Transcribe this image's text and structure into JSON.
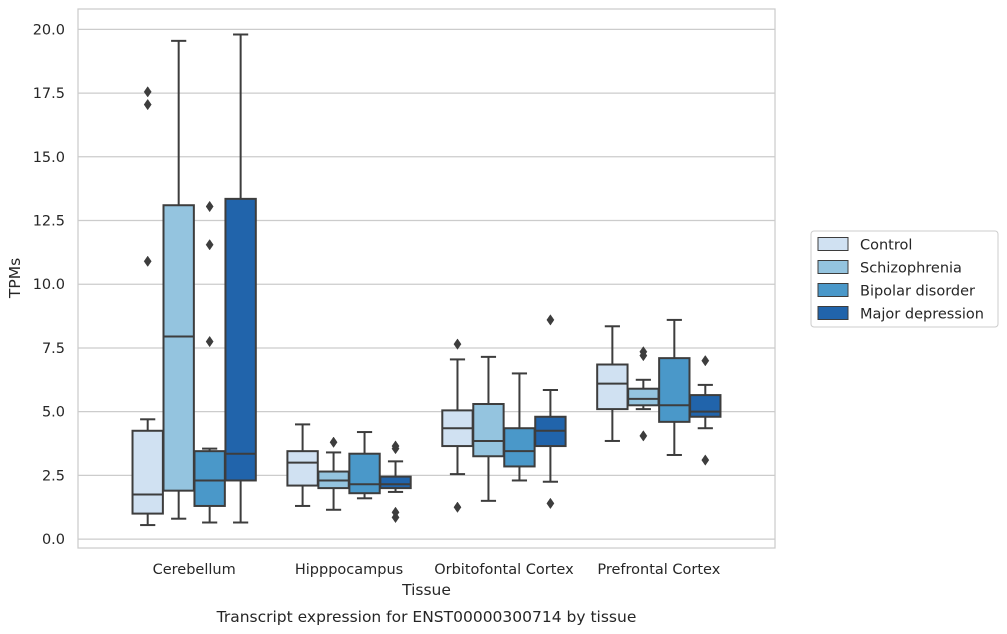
{
  "chart_data": {
    "type": "boxplot",
    "xlabel": "Tissue",
    "ylabel": "TPMs",
    "caption": "Transcript expression for ENST00000300714 by tissue",
    "categories": [
      "Cerebellum",
      "Hipppocampus",
      "Orbitofontal Cortex",
      "Prefrontal Cortex"
    ],
    "ylim": [
      -0.35,
      20.8
    ],
    "yticks": [
      0.0,
      2.5,
      5.0,
      7.5,
      10.0,
      12.5,
      15.0,
      17.5,
      20.0
    ],
    "ytick_labels": [
      "0.0",
      "2.5",
      "5.0",
      "7.5",
      "10.0",
      "12.5",
      "15.0",
      "17.5",
      "20.0"
    ],
    "grid": "horizontal",
    "legend_position": "right",
    "series": [
      {
        "name": "Control",
        "color": "#d0e1f2",
        "boxes": [
          {
            "whislo": 0.55,
            "q1": 1.0,
            "med": 1.75,
            "q3": 4.25,
            "whishi": 4.7,
            "fliers": [
              17.55,
              17.05,
              10.9
            ]
          },
          {
            "whislo": 1.3,
            "q1": 2.1,
            "med": 3.0,
            "q3": 3.45,
            "whishi": 4.5,
            "fliers": []
          },
          {
            "whislo": 2.55,
            "q1": 3.65,
            "med": 4.35,
            "q3": 5.05,
            "whishi": 7.05,
            "fliers": [
              7.65,
              1.25
            ]
          },
          {
            "whislo": 3.85,
            "q1": 5.1,
            "med": 6.1,
            "q3": 6.85,
            "whishi": 8.35,
            "fliers": []
          }
        ]
      },
      {
        "name": "Schizophrenia",
        "color": "#94c4df",
        "boxes": [
          {
            "whislo": 0.8,
            "q1": 1.9,
            "med": 7.95,
            "q3": 13.1,
            "whishi": 19.55,
            "fliers": []
          },
          {
            "whislo": 1.15,
            "q1": 2.0,
            "med": 2.3,
            "q3": 2.65,
            "whishi": 3.4,
            "fliers": [
              3.8
            ]
          },
          {
            "whislo": 1.5,
            "q1": 3.25,
            "med": 3.85,
            "q3": 5.3,
            "whishi": 7.15,
            "fliers": []
          },
          {
            "whislo": 5.1,
            "q1": 5.25,
            "med": 5.5,
            "q3": 5.9,
            "whishi": 6.25,
            "fliers": [
              7.35,
              7.2,
              4.05
            ]
          }
        ]
      },
      {
        "name": "Bipolar disorder",
        "color": "#4a98c9",
        "boxes": [
          {
            "whislo": 0.65,
            "q1": 1.3,
            "med": 2.3,
            "q3": 3.45,
            "whishi": 3.55,
            "fliers": [
              13.05,
              11.55,
              7.75
            ]
          },
          {
            "whislo": 1.6,
            "q1": 1.8,
            "med": 2.15,
            "q3": 3.35,
            "whishi": 4.2,
            "fliers": []
          },
          {
            "whislo": 2.3,
            "q1": 2.85,
            "med": 3.45,
            "q3": 4.35,
            "whishi": 6.5,
            "fliers": []
          },
          {
            "whislo": 3.3,
            "q1": 4.6,
            "med": 5.25,
            "q3": 7.1,
            "whishi": 8.6,
            "fliers": []
          }
        ]
      },
      {
        "name": "Major depression",
        "color": "#2164ab",
        "boxes": [
          {
            "whislo": 0.65,
            "q1": 2.3,
            "med": 3.35,
            "q3": 13.35,
            "whishi": 19.8,
            "fliers": []
          },
          {
            "whislo": 1.85,
            "q1": 2.0,
            "med": 2.15,
            "q3": 2.45,
            "whishi": 3.05,
            "fliers": [
              3.65,
              3.55,
              1.05,
              0.85
            ]
          },
          {
            "whislo": 2.25,
            "q1": 3.65,
            "med": 4.25,
            "q3": 4.8,
            "whishi": 5.85,
            "fliers": [
              8.6,
              1.4
            ]
          },
          {
            "whislo": 4.35,
            "q1": 4.8,
            "med": 5.0,
            "q3": 5.65,
            "whishi": 6.05,
            "fliers": [
              7.0,
              3.1
            ]
          }
        ]
      }
    ]
  }
}
